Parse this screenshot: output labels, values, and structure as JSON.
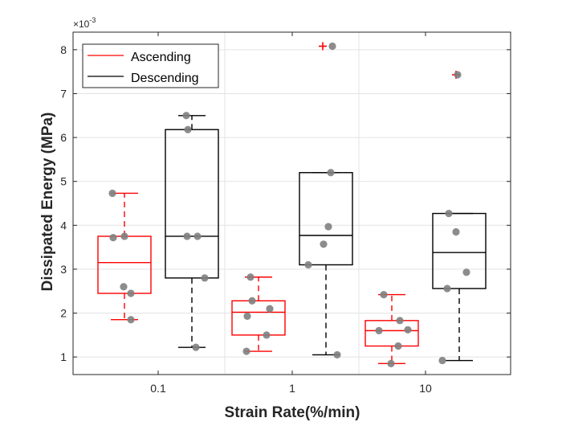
{
  "chart_data": {
    "type": "box",
    "xlabel": "Strain Rate(%/min)",
    "ylabel": "Dissipated Energy (MPa)",
    "y_exponent_base": "×10",
    "y_exponent_power": "-3",
    "x_scale": "log",
    "y_scale": "linear",
    "ylim": [
      0.6,
      8.4
    ],
    "y_ticks": [
      1,
      2,
      3,
      4,
      5,
      6,
      7,
      8
    ],
    "x_ticks": [
      {
        "label": "0.1"
      },
      {
        "label": "1"
      },
      {
        "label": "10"
      }
    ],
    "grid": true,
    "legend_position": "top-left",
    "series": [
      {
        "name": "Ascending",
        "color": "#ff0000",
        "boxes": [
          {
            "x": "0.1",
            "whisker_low": 1.85,
            "q1": 2.45,
            "median": 3.15,
            "q3": 3.75,
            "whisker_high": 4.73,
            "outliers": [],
            "points": [
              4.73,
              3.72,
              3.75,
              2.6,
              2.45,
              1.85
            ]
          },
          {
            "x": "1",
            "whisker_low": 1.13,
            "q1": 1.5,
            "median": 2.02,
            "q3": 2.28,
            "whisker_high": 2.82,
            "outliers": [
              8.08
            ],
            "points": [
              2.82,
              2.28,
              1.93,
              2.1,
              1.5,
              1.13
            ]
          },
          {
            "x": "10",
            "whisker_low": 0.85,
            "q1": 1.25,
            "median": 1.6,
            "q3": 1.83,
            "whisker_high": 2.42,
            "outliers": [
              7.43
            ],
            "points": [
              2.42,
              1.83,
              1.6,
              1.62,
              1.25,
              0.85
            ]
          }
        ]
      },
      {
        "name": "Descending",
        "color": "#000000",
        "boxes": [
          {
            "x": "0.1",
            "whisker_low": 1.22,
            "q1": 2.8,
            "median": 3.75,
            "q3": 6.18,
            "whisker_high": 6.5,
            "outliers": [],
            "points": [
              6.5,
              6.18,
              3.75,
              3.75,
              2.8,
              1.22
            ]
          },
          {
            "x": "1",
            "whisker_low": 1.05,
            "q1": 3.1,
            "median": 3.77,
            "q3": 5.2,
            "whisker_high": 5.2,
            "outliers": [],
            "points": [
              8.08,
              5.2,
              3.97,
              3.57,
              3.1,
              1.05
            ]
          },
          {
            "x": "10",
            "whisker_low": 0.92,
            "q1": 2.56,
            "median": 3.38,
            "q3": 4.27,
            "whisker_high": 4.27,
            "outliers": [],
            "points": [
              7.43,
              4.27,
              3.85,
              2.93,
              2.56,
              0.92
            ]
          }
        ]
      }
    ]
  }
}
